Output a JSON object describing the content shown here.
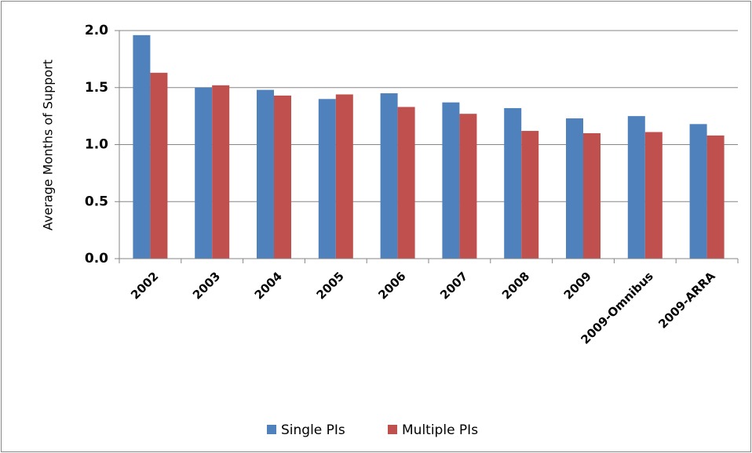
{
  "chart_data": {
    "type": "bar",
    "y_label": "Average Months of Support",
    "categories": [
      "2002",
      "2003",
      "2004",
      "2005",
      "2006",
      "2007",
      "2008",
      "2009",
      "2009-Omnibus",
      "2009-ARRA"
    ],
    "series": [
      {
        "name": "Single PIs",
        "color": "#4f81bd",
        "values": [
          1.96,
          1.5,
          1.48,
          1.4,
          1.45,
          1.37,
          1.32,
          1.23,
          1.25,
          1.18
        ]
      },
      {
        "name": "Multiple PIs",
        "color": "#c0504d",
        "values": [
          1.63,
          1.52,
          1.43,
          1.44,
          1.33,
          1.27,
          1.12,
          1.1,
          1.11,
          1.08
        ]
      }
    ],
    "ylim": [
      0,
      2
    ],
    "yticks": [
      {
        "value": 0,
        "label": "0.0"
      },
      0.5,
      {
        "value": 1,
        "label": "1.0"
      },
      1.5,
      {
        "value": 2,
        "label": "2.0"
      }
    ],
    "grid": true,
    "legend": "bottom"
  }
}
